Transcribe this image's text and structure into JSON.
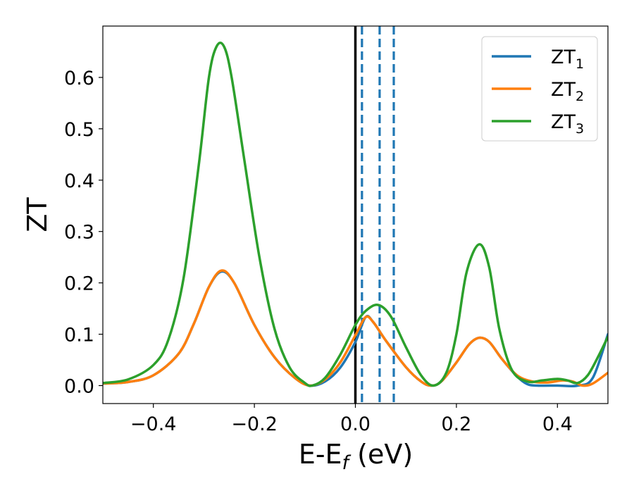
{
  "chart_data": {
    "type": "line",
    "title": "",
    "xlabel": {
      "main": "E-E",
      "sub": "f",
      "rest": " (eV)"
    },
    "ylabel": "ZT",
    "xlim": [
      -0.5,
      0.5
    ],
    "ylim": [
      -0.035,
      0.7
    ],
    "grid": false,
    "legend_position": "top-right",
    "x_ticks": [
      {
        "value": -0.4,
        "label": "−0.4"
      },
      {
        "value": -0.2,
        "label": "−0.2"
      },
      {
        "value": 0.0,
        "label": "0.0"
      },
      {
        "value": 0.2,
        "label": "0.2"
      },
      {
        "value": 0.4,
        "label": "0.4"
      }
    ],
    "y_ticks": [
      {
        "value": 0.0,
        "label": "0.0"
      },
      {
        "value": 0.1,
        "label": "0.1"
      },
      {
        "value": 0.2,
        "label": "0.2"
      },
      {
        "value": 0.3,
        "label": "0.3"
      },
      {
        "value": 0.4,
        "label": "0.4"
      },
      {
        "value": 0.5,
        "label": "0.5"
      },
      {
        "value": 0.6,
        "label": "0.6"
      }
    ],
    "vertical_lines": [
      {
        "x": 0.0,
        "color": "#000000",
        "style": "solid"
      },
      {
        "x": 0.013,
        "color": "#1f77b4",
        "style": "dashed"
      },
      {
        "x": 0.048,
        "color": "#1f77b4",
        "style": "dashed"
      },
      {
        "x": 0.076,
        "color": "#1f77b4",
        "style": "dashed"
      }
    ],
    "series": [
      {
        "name": "ZT",
        "sub": "1",
        "color": "#1f77b4",
        "points": [
          [
            -0.5,
            0.004
          ],
          [
            -0.45,
            0.007
          ],
          [
            -0.4,
            0.02
          ],
          [
            -0.35,
            0.062
          ],
          [
            -0.32,
            0.12
          ],
          [
            -0.29,
            0.192
          ],
          [
            -0.265,
            0.222
          ],
          [
            -0.24,
            0.2
          ],
          [
            -0.2,
            0.118
          ],
          [
            -0.16,
            0.055
          ],
          [
            -0.12,
            0.015
          ],
          [
            -0.09,
            0.0
          ],
          [
            -0.06,
            0.008
          ],
          [
            -0.03,
            0.035
          ],
          [
            0.0,
            0.085
          ],
          [
            0.02,
            0.133
          ],
          [
            0.035,
            0.124
          ],
          [
            0.06,
            0.088
          ],
          [
            0.1,
            0.036
          ],
          [
            0.13,
            0.008
          ],
          [
            0.15,
            0.0
          ],
          [
            0.17,
            0.008
          ],
          [
            0.2,
            0.045
          ],
          [
            0.225,
            0.08
          ],
          [
            0.245,
            0.093
          ],
          [
            0.265,
            0.085
          ],
          [
            0.29,
            0.052
          ],
          [
            0.32,
            0.018
          ],
          [
            0.34,
            0.003
          ],
          [
            0.36,
            0.0
          ],
          [
            0.4,
            0.0
          ],
          [
            0.44,
            0.0
          ],
          [
            0.47,
            0.015
          ],
          [
            0.5,
            0.1
          ]
        ]
      },
      {
        "name": "ZT",
        "sub": "2",
        "color": "#ff7f0e",
        "points": [
          [
            -0.5,
            0.004
          ],
          [
            -0.45,
            0.007
          ],
          [
            -0.4,
            0.02
          ],
          [
            -0.35,
            0.062
          ],
          [
            -0.32,
            0.12
          ],
          [
            -0.29,
            0.192
          ],
          [
            -0.265,
            0.224
          ],
          [
            -0.24,
            0.2
          ],
          [
            -0.2,
            0.118
          ],
          [
            -0.16,
            0.055
          ],
          [
            -0.12,
            0.015
          ],
          [
            -0.09,
            0.0
          ],
          [
            -0.06,
            0.012
          ],
          [
            -0.03,
            0.045
          ],
          [
            0.0,
            0.098
          ],
          [
            0.02,
            0.133
          ],
          [
            0.035,
            0.124
          ],
          [
            0.06,
            0.088
          ],
          [
            0.1,
            0.036
          ],
          [
            0.13,
            0.008
          ],
          [
            0.15,
            0.0
          ],
          [
            0.17,
            0.008
          ],
          [
            0.2,
            0.045
          ],
          [
            0.225,
            0.08
          ],
          [
            0.245,
            0.093
          ],
          [
            0.265,
            0.085
          ],
          [
            0.29,
            0.052
          ],
          [
            0.32,
            0.02
          ],
          [
            0.35,
            0.008
          ],
          [
            0.38,
            0.006
          ],
          [
            0.41,
            0.01
          ],
          [
            0.43,
            0.008
          ],
          [
            0.45,
            0.0
          ],
          [
            0.47,
            0.004
          ],
          [
            0.5,
            0.025
          ]
        ]
      },
      {
        "name": "ZT",
        "sub": "3",
        "color": "#2ca02c",
        "points": [
          [
            -0.5,
            0.005
          ],
          [
            -0.45,
            0.012
          ],
          [
            -0.4,
            0.04
          ],
          [
            -0.37,
            0.09
          ],
          [
            -0.34,
            0.21
          ],
          [
            -0.31,
            0.43
          ],
          [
            -0.29,
            0.6
          ],
          [
            -0.275,
            0.66
          ],
          [
            -0.26,
            0.66
          ],
          [
            -0.245,
            0.6
          ],
          [
            -0.22,
            0.44
          ],
          [
            -0.19,
            0.25
          ],
          [
            -0.16,
            0.11
          ],
          [
            -0.13,
            0.035
          ],
          [
            -0.1,
            0.005
          ],
          [
            -0.085,
            0.0
          ],
          [
            -0.06,
            0.015
          ],
          [
            -0.03,
            0.06
          ],
          [
            0.0,
            0.118
          ],
          [
            0.02,
            0.145
          ],
          [
            0.045,
            0.157
          ],
          [
            0.07,
            0.135
          ],
          [
            0.1,
            0.075
          ],
          [
            0.13,
            0.02
          ],
          [
            0.155,
            0.0
          ],
          [
            0.18,
            0.025
          ],
          [
            0.2,
            0.1
          ],
          [
            0.22,
            0.22
          ],
          [
            0.245,
            0.275
          ],
          [
            0.265,
            0.23
          ],
          [
            0.285,
            0.11
          ],
          [
            0.31,
            0.03
          ],
          [
            0.34,
            0.008
          ],
          [
            0.37,
            0.01
          ],
          [
            0.4,
            0.013
          ],
          [
            0.42,
            0.01
          ],
          [
            0.44,
            0.005
          ],
          [
            0.46,
            0.02
          ],
          [
            0.48,
            0.055
          ],
          [
            0.5,
            0.095
          ]
        ]
      }
    ]
  }
}
